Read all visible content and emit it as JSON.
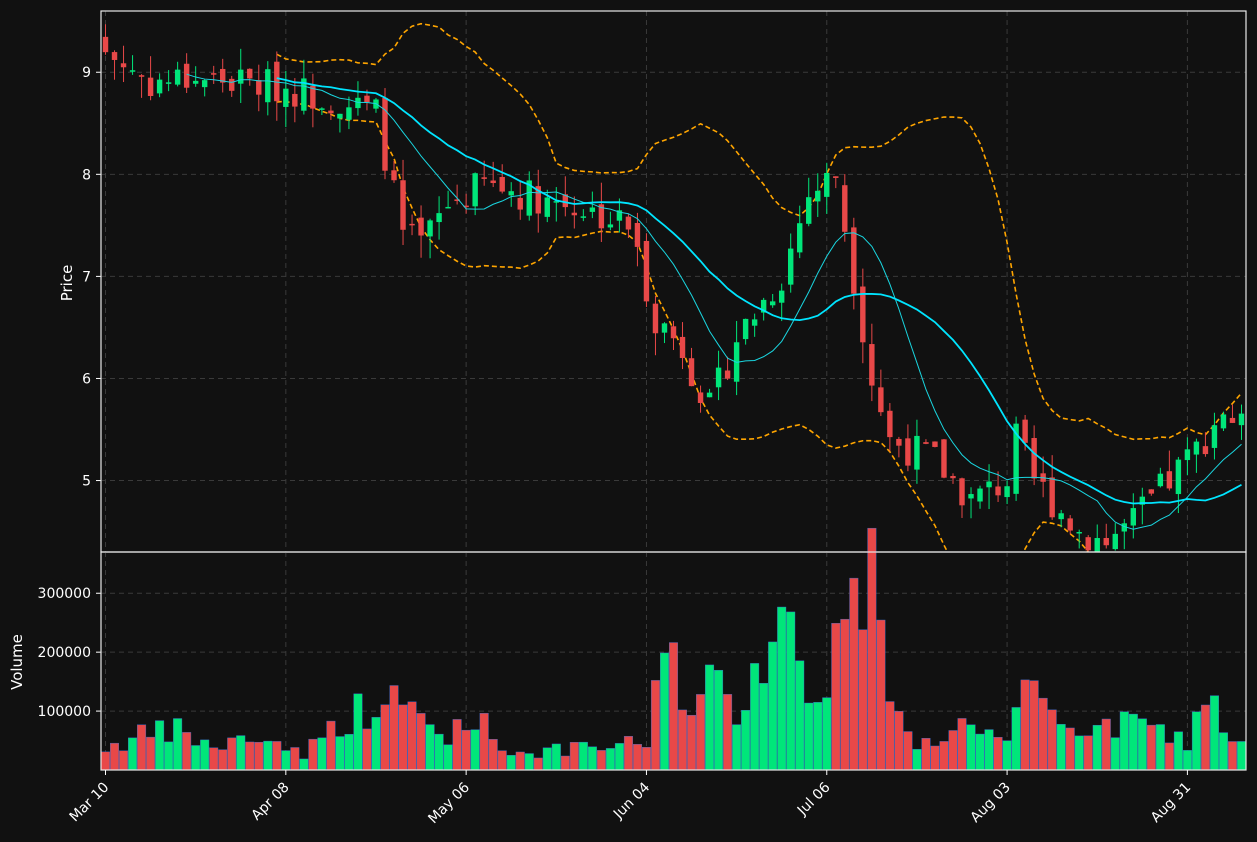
{
  "colors": {
    "background": "#111111",
    "up": "#00e67a",
    "down": "#e84848",
    "ma_fast": "#00e5ff",
    "ma_slow": "#1ad6e0",
    "bollinger": "#ffa500",
    "grid": "#3a3a3a"
  },
  "chart_data": {
    "type": "candlestick",
    "price_panel": {
      "ylabel": "Price",
      "ylim": [
        4.3,
        9.6
      ],
      "yticks": [
        5,
        6,
        7,
        8,
        9
      ],
      "ytick_labels": [
        "5",
        "6",
        "7",
        "8",
        "9"
      ]
    },
    "volume_panel": {
      "ylabel": "Volume",
      "ylim": [
        0,
        370000
      ],
      "yticks": [
        100000,
        200000,
        300000
      ],
      "ytick_labels": [
        "100000",
        "200000",
        "300000"
      ]
    },
    "xlim": [
      -0.5,
      126.5
    ],
    "xticks": [
      {
        "index": 0,
        "label": "Mar 10"
      },
      {
        "index": 20,
        "label": "Apr 08"
      },
      {
        "index": 40,
        "label": "May 06"
      },
      {
        "index": 60,
        "label": "Jun 04"
      },
      {
        "index": 80,
        "label": "Jul 06"
      },
      {
        "index": 100,
        "label": "Aug 03"
      },
      {
        "index": 120,
        "label": "Aug 31"
      }
    ],
    "grid": true,
    "price_keyframes": [
      [
        0,
        9.2
      ],
      [
        5,
        8.9
      ],
      [
        10,
        8.95
      ],
      [
        15,
        8.9
      ],
      [
        20,
        8.85
      ],
      [
        25,
        8.75
      ],
      [
        30,
        8.6
      ],
      [
        33,
        7.4
      ],
      [
        35,
        7.3
      ],
      [
        38,
        7.7
      ],
      [
        42,
        7.9
      ],
      [
        47,
        7.8
      ],
      [
        52,
        7.7
      ],
      [
        58,
        7.5
      ],
      [
        61,
        6.6
      ],
      [
        64,
        6.3
      ],
      [
        67,
        5.7
      ],
      [
        70,
        6.4
      ],
      [
        75,
        7.0
      ],
      [
        78,
        7.8
      ],
      [
        81,
        8.0
      ],
      [
        83,
        7.0
      ],
      [
        85,
        6.0
      ],
      [
        87,
        5.4
      ],
      [
        92,
        5.2
      ],
      [
        96,
        4.8
      ],
      [
        100,
        5.0
      ],
      [
        101,
        5.4
      ],
      [
        103,
        5.0
      ],
      [
        108,
        4.5
      ],
      [
        111,
        4.4
      ],
      [
        114,
        4.6
      ],
      [
        117,
        4.9
      ],
      [
        121,
        5.3
      ],
      [
        124,
        5.7
      ],
      [
        126,
        5.5
      ]
    ],
    "volume_keyframes": [
      [
        0,
        40000
      ],
      [
        4,
        60000
      ],
      [
        8,
        70000
      ],
      [
        12,
        40000
      ],
      [
        17,
        60000
      ],
      [
        22,
        30000
      ],
      [
        27,
        100000
      ],
      [
        33,
        120000
      ],
      [
        38,
        50000
      ],
      [
        40,
        110000
      ],
      [
        45,
        30000
      ],
      [
        55,
        40000
      ],
      [
        60,
        50000
      ],
      [
        61,
        130000
      ],
      [
        62,
        280000
      ],
      [
        65,
        90000
      ],
      [
        67,
        150000
      ],
      [
        70,
        110000
      ],
      [
        75,
        300000
      ],
      [
        78,
        120000
      ],
      [
        82,
        260000
      ],
      [
        85,
        340000
      ],
      [
        86,
        220000
      ],
      [
        90,
        40000
      ],
      [
        95,
        80000
      ],
      [
        100,
        40000
      ],
      [
        102,
        140000
      ],
      [
        110,
        60000
      ],
      [
        113,
        90000
      ],
      [
        120,
        50000
      ],
      [
        122,
        135000
      ],
      [
        126,
        40000
      ]
    ],
    "candle_count": 127,
    "series": [
      {
        "type": "candle",
        "up_color": "#00e67a",
        "down_color": "#e84848"
      },
      {
        "type": "line",
        "color": "#00e5ff",
        "window": 20
      },
      {
        "type": "line",
        "color": "#1ad6e0",
        "window": 10
      },
      {
        "type": "band",
        "color": "#ffa500",
        "window": 20,
        "k": 2,
        "style": "dashed"
      }
    ]
  }
}
